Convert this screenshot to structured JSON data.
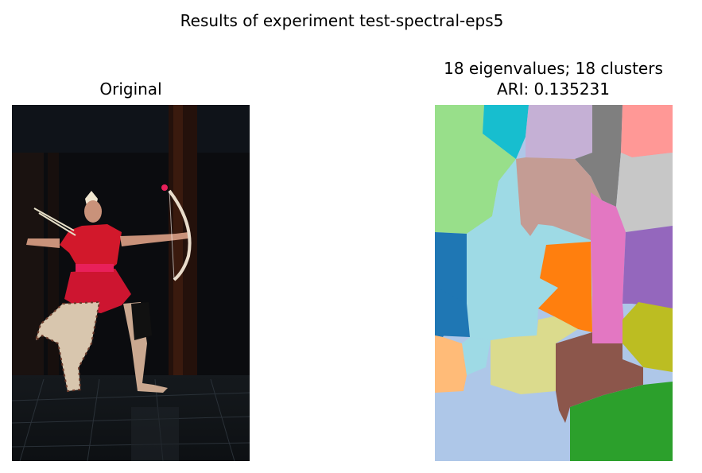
{
  "figure": {
    "suptitle": "Results of experiment test-spectral-eps5"
  },
  "panels": {
    "left": {
      "title": "Original",
      "image": "photograph of a dancer in red costume drawing a bow, dark stage with tiled floor"
    },
    "right": {
      "title_line1": "18 eigenvalues; 18 clusters",
      "title_line2": "ARI: 0.135231",
      "image": "segmentation map with 18 colored cluster regions"
    }
  },
  "colors": {
    "c_green_light": "#98df8a",
    "c_cyan": "#17becf",
    "c_lavender": "#c5b0d5",
    "c_gray": "#7f7f7f",
    "c_pink_light": "#ff9896",
    "c_silver": "#c7c7c7",
    "c_tan": "#c49c94",
    "c_lightblue": "#9edae5",
    "c_blue": "#1f77b4",
    "c_orange": "#ff7f0e",
    "c_magenta": "#e377c2",
    "c_purple": "#9467bd",
    "c_olive": "#bcbd22",
    "c_peach": "#ffbb78",
    "c_khaki": "#dbdb8d",
    "c_brown": "#8c564b",
    "c_periwinkle": "#aec7e8",
    "c_green": "#2ca02c"
  }
}
